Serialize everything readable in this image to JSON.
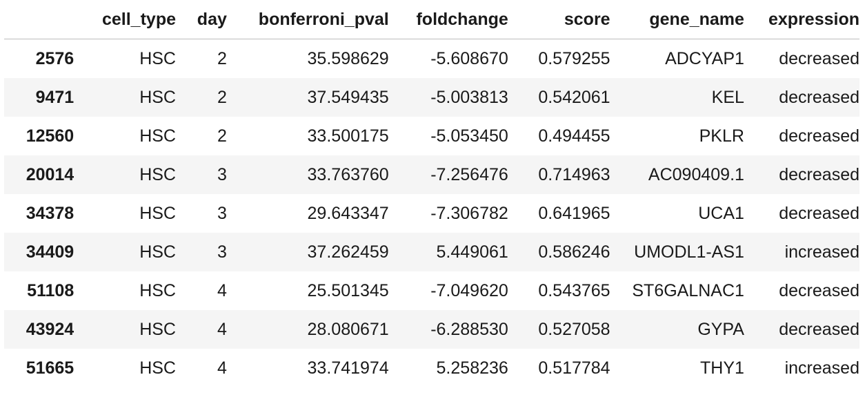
{
  "table": {
    "columns": [
      "",
      "cell_type",
      "day",
      "bonferroni_pval",
      "foldchange",
      "score",
      "gene_name",
      "expression"
    ],
    "rows": [
      {
        "index": "2576",
        "cell_type": "HSC",
        "day": "2",
        "bonferroni_pval": "35.598629",
        "foldchange": "-5.608670",
        "score": "0.579255",
        "gene_name": "ADCYAP1",
        "expression": "decreased"
      },
      {
        "index": "9471",
        "cell_type": "HSC",
        "day": "2",
        "bonferroni_pval": "37.549435",
        "foldchange": "-5.003813",
        "score": "0.542061",
        "gene_name": "KEL",
        "expression": "decreased"
      },
      {
        "index": "12560",
        "cell_type": "HSC",
        "day": "2",
        "bonferroni_pval": "33.500175",
        "foldchange": "-5.053450",
        "score": "0.494455",
        "gene_name": "PKLR",
        "expression": "decreased"
      },
      {
        "index": "20014",
        "cell_type": "HSC",
        "day": "3",
        "bonferroni_pval": "33.763760",
        "foldchange": "-7.256476",
        "score": "0.714963",
        "gene_name": "AC090409.1",
        "expression": "decreased"
      },
      {
        "index": "34378",
        "cell_type": "HSC",
        "day": "3",
        "bonferroni_pval": "29.643347",
        "foldchange": "-7.306782",
        "score": "0.641965",
        "gene_name": "UCA1",
        "expression": "decreased"
      },
      {
        "index": "34409",
        "cell_type": "HSC",
        "day": "3",
        "bonferroni_pval": "37.262459",
        "foldchange": "5.449061",
        "score": "0.586246",
        "gene_name": "UMODL1-AS1",
        "expression": "increased"
      },
      {
        "index": "51108",
        "cell_type": "HSC",
        "day": "4",
        "bonferroni_pval": "25.501345",
        "foldchange": "-7.049620",
        "score": "0.543765",
        "gene_name": "ST6GALNAC1",
        "expression": "decreased"
      },
      {
        "index": "43924",
        "cell_type": "HSC",
        "day": "4",
        "bonferroni_pval": "28.080671",
        "foldchange": "-6.288530",
        "score": "0.527058",
        "gene_name": "GYPA",
        "expression": "decreased"
      },
      {
        "index": "51665",
        "cell_type": "HSC",
        "day": "4",
        "bonferroni_pval": "33.741974",
        "foldchange": "5.258236",
        "score": "0.517784",
        "gene_name": "THY1",
        "expression": "increased"
      }
    ]
  }
}
